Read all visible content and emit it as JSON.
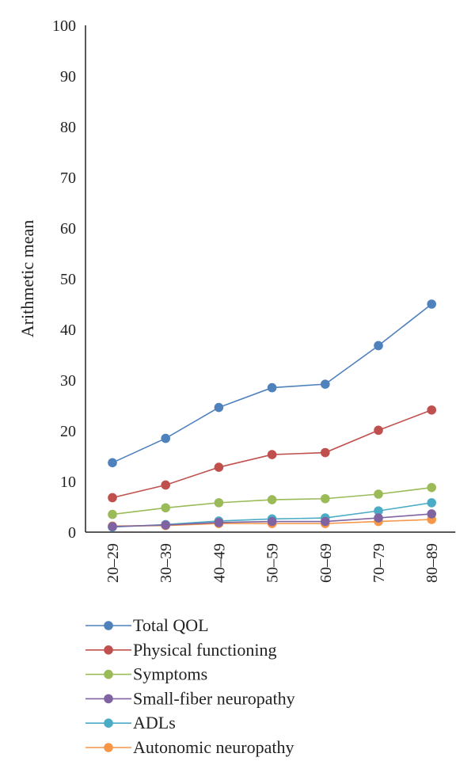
{
  "chart_data": {
    "type": "line",
    "title": "",
    "xlabel": "",
    "ylabel": "Arithmetic mean",
    "ylim": [
      0,
      100
    ],
    "yticks": [
      0,
      10,
      20,
      30,
      40,
      50,
      60,
      70,
      80,
      90,
      100
    ],
    "categories": [
      "20–29",
      "30–39",
      "40–49",
      "50–59",
      "60–69",
      "70–79",
      "80–89"
    ],
    "grid": false,
    "legend_position": "bottom",
    "series": [
      {
        "name": "Total QOL",
        "color": "#4f81bd",
        "values": [
          13.7,
          18.5,
          24.6,
          28.5,
          29.2,
          36.8,
          45.0
        ]
      },
      {
        "name": "Physical functioning",
        "color": "#c0504d",
        "values": [
          6.8,
          9.3,
          12.8,
          15.3,
          15.7,
          20.1,
          24.1
        ]
      },
      {
        "name": "Symptoms",
        "color": "#9bbb59",
        "values": [
          3.5,
          4.8,
          5.8,
          6.4,
          6.6,
          7.5,
          8.8
        ]
      },
      {
        "name": "Small-fiber neuropathy",
        "color": "#8064a2",
        "values": [
          1.1,
          1.4,
          1.9,
          2.1,
          2.1,
          2.8,
          3.6
        ]
      },
      {
        "name": "ADLs",
        "color": "#4bacc6",
        "values": [
          1.0,
          1.5,
          2.2,
          2.6,
          2.8,
          4.2,
          5.8
        ]
      },
      {
        "name": "Autonomic neuropathy",
        "color": "#f79646",
        "values": [
          1.2,
          1.3,
          1.7,
          1.7,
          1.7,
          2.1,
          2.5
        ]
      }
    ]
  }
}
